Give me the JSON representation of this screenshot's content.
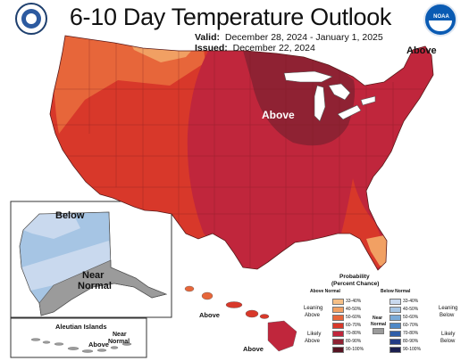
{
  "title": "6-10 Day Temperature Outlook",
  "valid_label": "Valid:",
  "valid_range": "December 28, 2024 - January 1, 2025",
  "issued_label": "Issued:",
  "issued_date": "December 22, 2024",
  "map_labels": {
    "above_great_lakes": "Above",
    "above_new_england": "Above",
    "alaska_below": "Below",
    "alaska_near_normal_1": "Near",
    "alaska_near_normal_2": "Normal",
    "aleutian_title": "Aleutian Islands",
    "aleutian_above": "Above",
    "aleutian_near_1": "Near",
    "aleutian_near_2": "Normal",
    "hawaii_above_1": "Above",
    "hawaii_above_2": "Above"
  },
  "legend": {
    "title_1": "Probability",
    "title_2": "(Percent Chance)",
    "above_header": "Above Normal",
    "below_header": "Below Normal",
    "near_label_1": "Near",
    "near_label_2": "Normal",
    "leaning_above_1": "Leaning",
    "leaning_above_2": "Above",
    "likely_above_1": "Likely",
    "likely_above_2": "Above",
    "leaning_below_1": "Leaning",
    "leaning_below_2": "Below",
    "likely_below_1": "Likely",
    "likely_below_2": "Below",
    "above_bins": [
      "33-40%",
      "40-50%",
      "50-60%",
      "60-70%",
      "70-80%",
      "80-90%",
      "90-100%"
    ],
    "below_bins": [
      "33-40%",
      "40-50%",
      "50-60%",
      "60-70%",
      "70-80%",
      "80-90%",
      "90-100%"
    ],
    "above_colors": [
      "#f5c087",
      "#f1a063",
      "#e7663a",
      "#d8382a",
      "#c0263c",
      "#8f2233",
      "#561422"
    ],
    "below_colors": [
      "#c9d9ee",
      "#a6c5e4",
      "#7aaad7",
      "#4f88c6",
      "#2f5ea8",
      "#233c85",
      "#1b1f4f"
    ],
    "near_color": "#9b9b9b"
  },
  "logos": {
    "noaa_text": "NOAA"
  },
  "colors": {
    "above_40_50": "#f1a063",
    "above_50_60": "#e7663a",
    "above_60_70": "#d8382a",
    "above_70_80": "#c0263c",
    "above_80_90": "#8f2233",
    "below_33_40": "#c9d9ee",
    "below_40_50": "#a6c5e4",
    "near_normal": "#9b9b9b"
  }
}
